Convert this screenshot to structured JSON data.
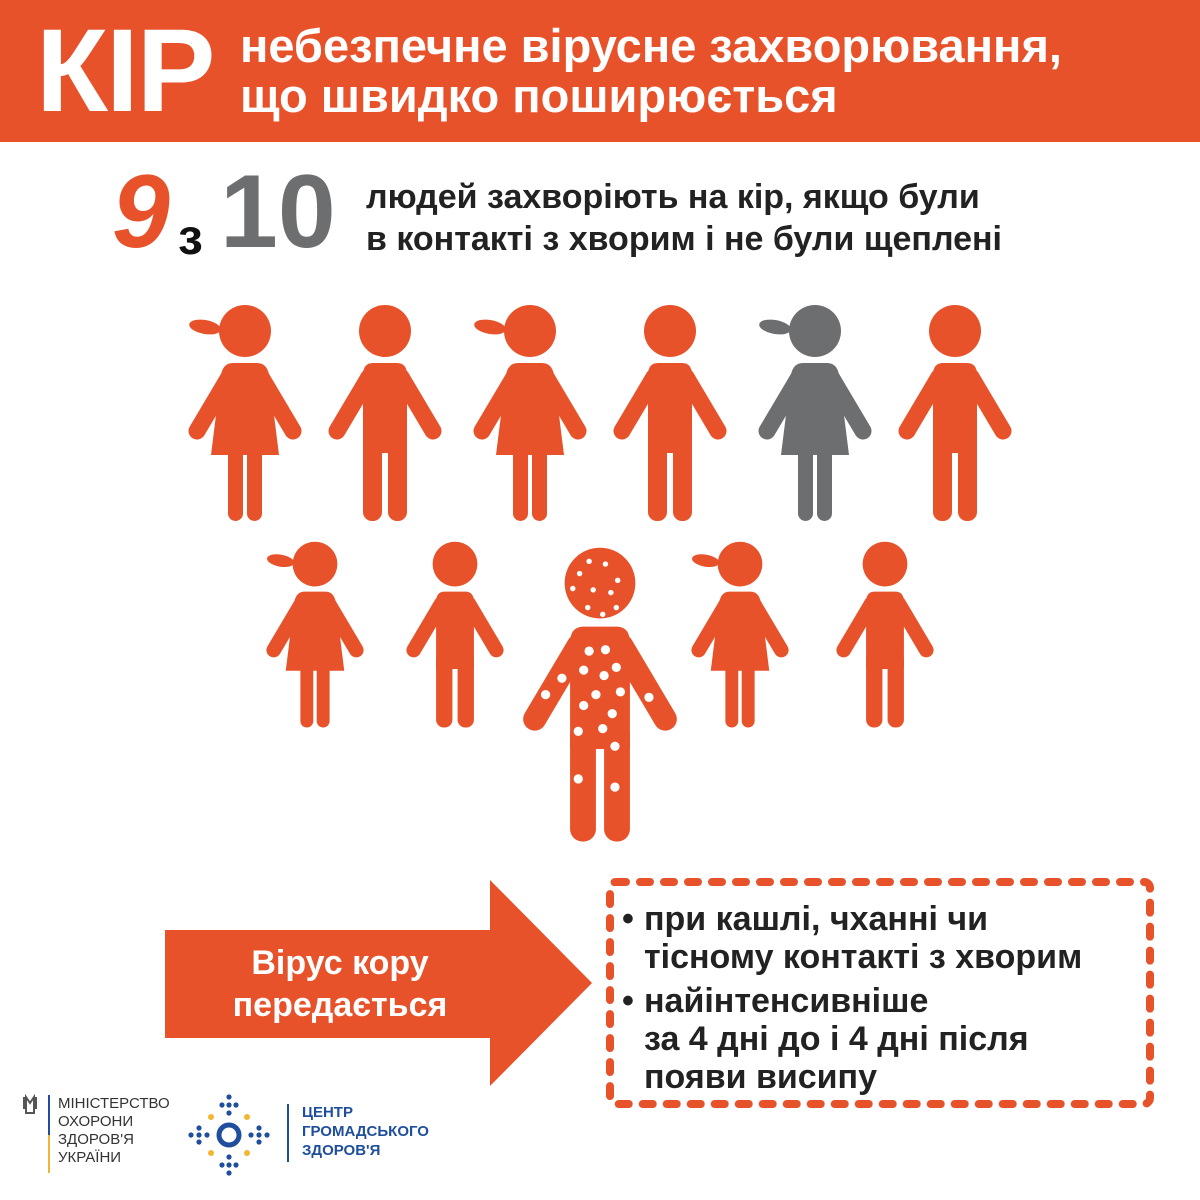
{
  "header": {
    "big": "КІР",
    "line1": "небезпечне вірусне захворювання,",
    "line2": "що швидко поширюється"
  },
  "stat": {
    "num": "9",
    "of": "з",
    "total": "10",
    "line1": "людей захворіють на кір, якщо були",
    "line2": "в контакті з хворим і не були щеплені"
  },
  "figures": {
    "row1": [
      "girl",
      "boy",
      "girl",
      "boy",
      "girl-grey",
      "boy"
    ],
    "row2": [
      "girl",
      "boy",
      "sick",
      "girl",
      "boy"
    ],
    "colors": {
      "sick": "#e8522a",
      "healthy": "#6d6e70"
    }
  },
  "arrow": {
    "line1": "Вірус кору",
    "line2": "передається"
  },
  "bullets": [
    {
      "line1": "при кашлі, чханні чи",
      "line2": "тісному контакті з хворим"
    },
    {
      "line1": "найінтенсивніше",
      "line2": "за 4 дні до і 4 дні після",
      "line3": "появи висипу"
    }
  ],
  "logos": {
    "moz": [
      "МІНІСТЕРСТВО",
      "ОХОРОНИ",
      "ЗДОРОВ'Я",
      "УКРАЇНИ"
    ],
    "cgz": [
      "ЦЕНТР",
      "ГРОМАДСЬКОГО",
      "ЗДОРОВ'Я"
    ]
  },
  "colors": {
    "accent": "#e8522a",
    "grey": "#6d6e70",
    "blue": "#1f4e9c",
    "yellow": "#f2b632"
  }
}
